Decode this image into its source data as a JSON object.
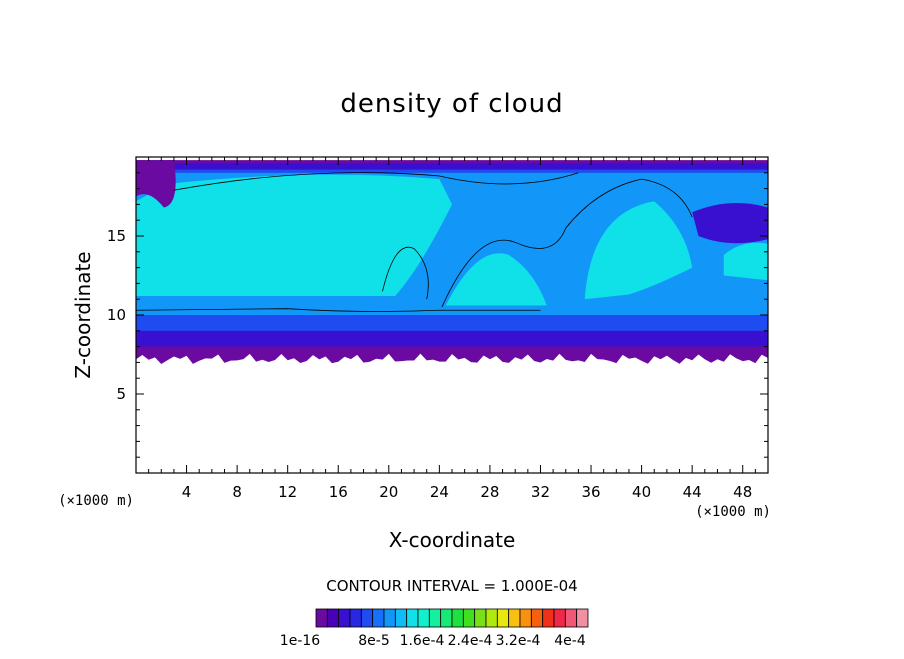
{
  "chart_data": {
    "type": "heatmap",
    "title": "density of cloud",
    "xlabel": "X-coordinate",
    "ylabel": "Z-coordinate",
    "x_unit": "(×1000 m)",
    "y_unit": "(×1000 m)",
    "xlim": [
      0,
      50
    ],
    "ylim": [
      0,
      20
    ],
    "x_ticks": [
      4,
      8,
      12,
      16,
      20,
      24,
      28,
      32,
      36,
      40,
      44,
      48
    ],
    "y_ticks": [
      5,
      10,
      15
    ],
    "contour_interval_text": "CONTOUR INTERVAL = 1.000E-04",
    "colorbar": {
      "labels": [
        "1e-16",
        "8e-5",
        "1.6e-4",
        "2.4e-4",
        "3.2e-4",
        "4e-4"
      ],
      "colors": [
        "#6a0aa0",
        "#4a00b8",
        "#3a10d0",
        "#2828e0",
        "#1e4cf0",
        "#1670f8",
        "#1296f8",
        "#10bcf4",
        "#10e0e8",
        "#10f0cc",
        "#14f0a0",
        "#18e874",
        "#20e040",
        "#40e020",
        "#78e018",
        "#b0e810",
        "#e8e810",
        "#f8c010",
        "#f89010",
        "#f86010",
        "#f03018",
        "#f02848",
        "#f05878",
        "#f090a0"
      ],
      "colors_note": "colorbar swatches from low to high"
    },
    "field_colors": {
      "cloud_base": "#6a0aa0",
      "low": "#3a10d0",
      "mid": "#1e4cf0",
      "mid2": "#1296f8",
      "high": "#10e0e8",
      "core": "#10f0cc"
    },
    "approx_regions": {
      "cloud_base_z": 7.2,
      "cloud_top_z": 19.8,
      "core_band_z": [
        11,
        18.5
      ],
      "clear_below_z": 7.2
    }
  }
}
